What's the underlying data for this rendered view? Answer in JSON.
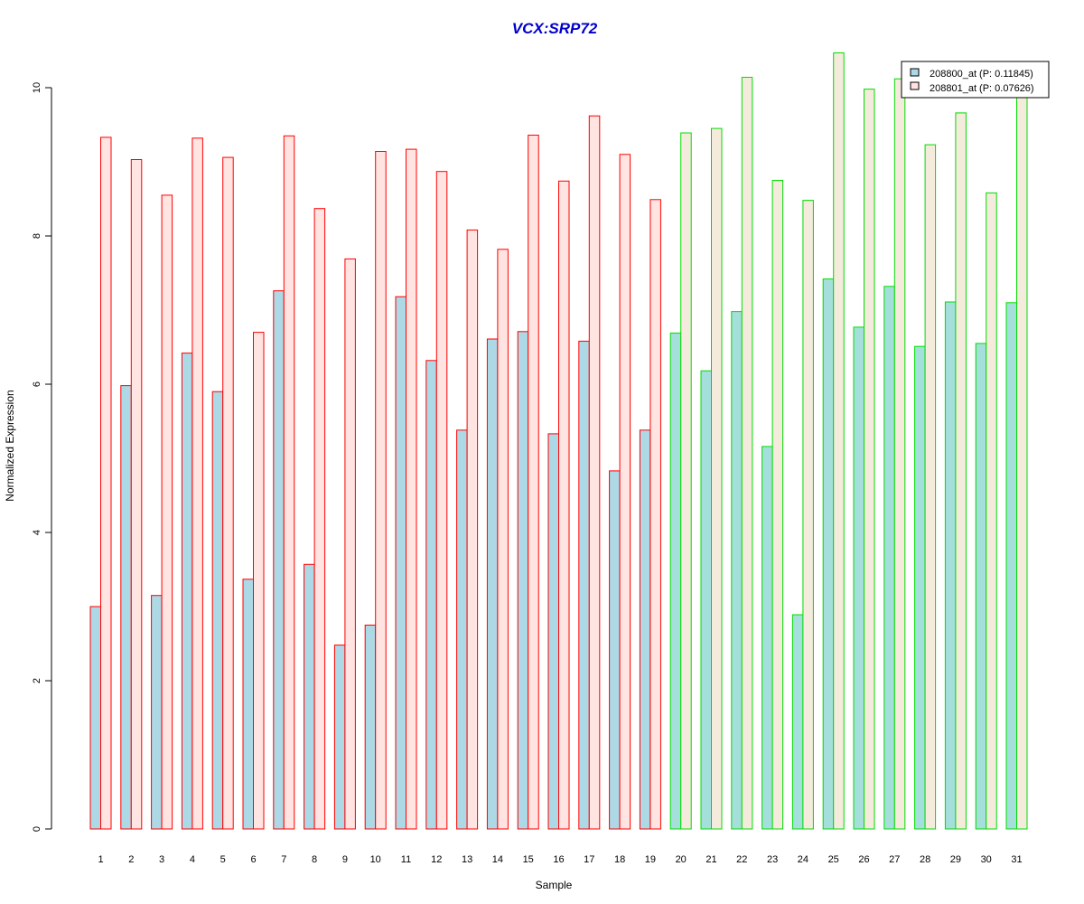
{
  "chart_data": {
    "type": "bar",
    "title": "VCX:SRP72",
    "xlabel": "Sample",
    "ylabel": "Normalized Expression",
    "ylim": [
      0,
      10.5
    ],
    "yticks": [
      0,
      2,
      4,
      6,
      8,
      10
    ],
    "grid": false,
    "legend_position": "top-right",
    "categories": [
      "1",
      "2",
      "3",
      "4",
      "5",
      "6",
      "7",
      "8",
      "9",
      "10",
      "11",
      "12",
      "13",
      "14",
      "15",
      "16",
      "17",
      "18",
      "19",
      "20",
      "21",
      "22",
      "23",
      "24",
      "25",
      "26",
      "27",
      "28",
      "29",
      "30",
      "31"
    ],
    "series": [
      {
        "name": "208800_at (P: 0.11845)",
        "values": [
          3.0,
          5.98,
          3.15,
          6.42,
          5.9,
          3.37,
          7.26,
          3.57,
          2.48,
          2.75,
          7.18,
          6.32,
          5.38,
          6.61,
          6.71,
          5.33,
          6.58,
          4.83,
          5.38,
          6.69,
          6.18,
          6.98,
          5.16,
          2.89,
          7.42,
          6.77,
          7.32,
          6.51,
          7.11,
          6.55,
          7.1
        ]
      },
      {
        "name": "208801_at (P: 0.07626)",
        "values": [
          9.33,
          9.03,
          8.55,
          9.32,
          9.06,
          6.7,
          9.35,
          8.37,
          7.69,
          9.14,
          9.17,
          8.87,
          8.08,
          7.82,
          9.36,
          8.74,
          9.62,
          9.1,
          8.49,
          9.39,
          9.45,
          10.14,
          8.75,
          8.48,
          10.47,
          9.98,
          10.12,
          9.23,
          9.66,
          8.58,
          9.9
        ]
      }
    ],
    "groups": [
      {
        "samples": [
          1,
          19
        ],
        "border_color": "#ff0000"
      },
      {
        "samples": [
          20,
          31
        ],
        "border_color": "#00dd00"
      }
    ],
    "colors": {
      "title": "#0000cc",
      "group1_series1_fill": "#add8e6",
      "group1_series2_fill": "#ffe4e1",
      "group2_series1_fill": "#a5dfdc",
      "group2_series2_fill": "#f5ebdc",
      "legend_swatch1": "#add8e6",
      "legend_swatch2": "#ffe4e1",
      "axis": "#000000"
    }
  }
}
